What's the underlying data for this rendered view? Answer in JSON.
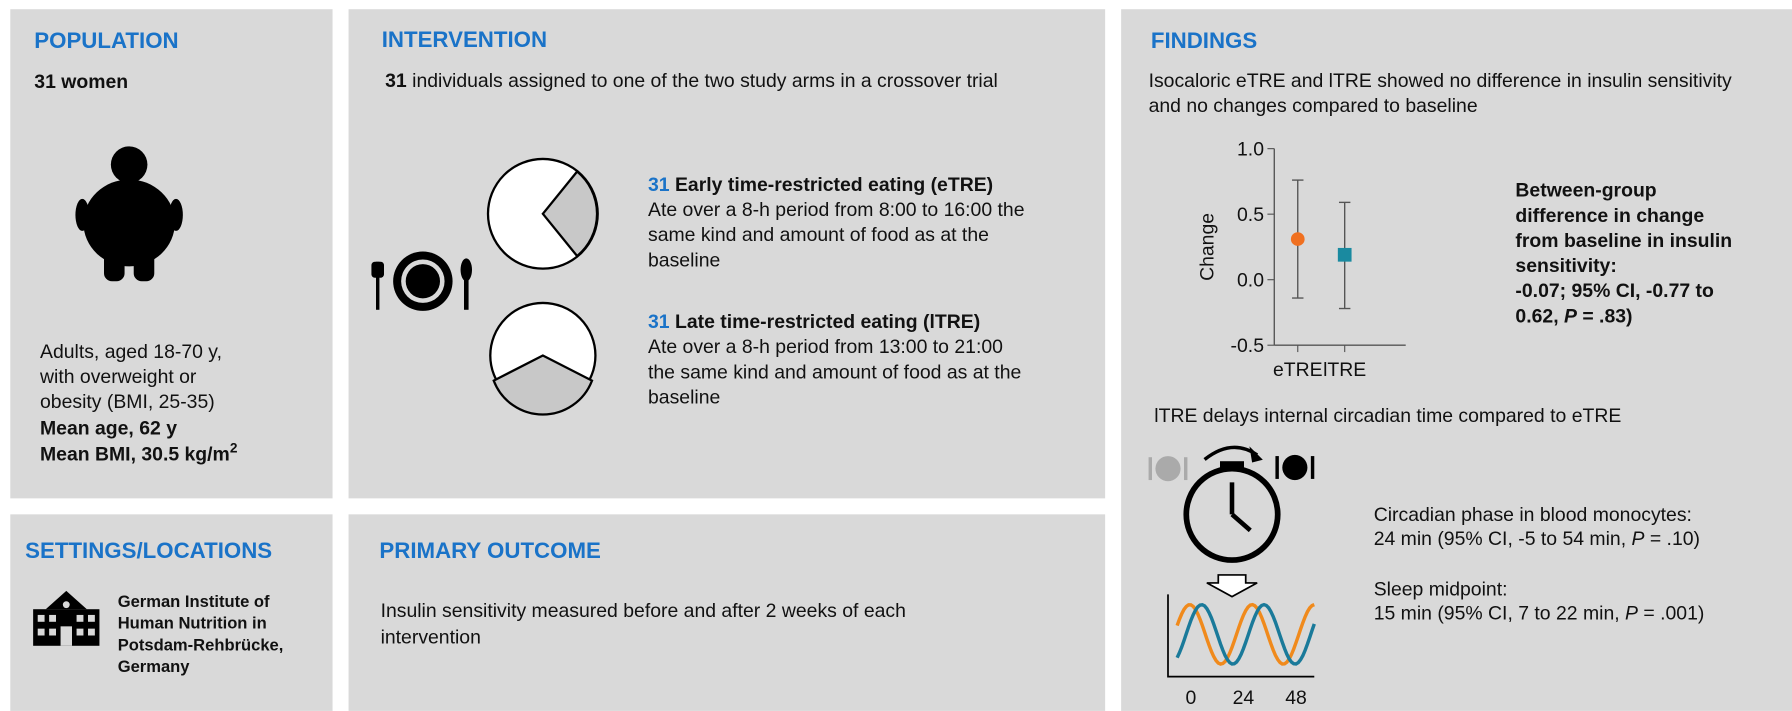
{
  "population": {
    "title": "POPULATION",
    "heading": "31 women",
    "lines": [
      "Adults, aged 18-70 y,",
      "with overweight or",
      "obesity (BMI, 25-35)"
    ],
    "mean_age": "Mean age, 62 y",
    "mean_bmi": "Mean BMI, 30.5 kg/m",
    "bmi_sup": "2"
  },
  "intervention": {
    "title": "INTERVENTION",
    "count": "31",
    "intro": " individuals assigned to one of the two study arms in a crossover trial",
    "arms": [
      {
        "count": "31",
        "name": " Early time-restricted eating (eTRE)",
        "lines": [
          "Ate over a 8-h period from 8:00 to 16:00 the",
          "same kind and amount of food as at the",
          "baseline"
        ]
      },
      {
        "count": "31",
        "name": " Late time-restricted eating (lTRE)",
        "lines": [
          "Ate over a 8-h period from 13:00 to 21:00",
          "the same kind and amount of food as at the",
          "baseline"
        ]
      }
    ]
  },
  "settings": {
    "title": "SETTINGS/LOCATIONS",
    "lines": [
      "German Institute of",
      "Human Nutrition in",
      "Potsdam-Rehbrücke,",
      "Germany"
    ]
  },
  "primary_outcome": {
    "title": "PRIMARY OUTCOME",
    "lines": [
      "Insulin sensitivity measured before and after 2 weeks of each",
      "intervention"
    ]
  },
  "findings": {
    "title": "FINDINGS",
    "lines": [
      "Isocaloric eTRE and lTRE showed no difference in insulin sensitivity",
      "and no changes compared to baseline"
    ],
    "chart": {
      "type": "errorbar",
      "ylabel": "Change",
      "categories": [
        "eTRE",
        "lTRE"
      ],
      "values": [
        0.31,
        0.19
      ],
      "upper": [
        0.76,
        0.59
      ],
      "lower": [
        -0.14,
        -0.22
      ],
      "colors": [
        "#f07020",
        "#1a8aa0"
      ],
      "markers": [
        "circle",
        "square"
      ],
      "ylim": [
        -0.5,
        1.0
      ],
      "yticks": [
        {
          "value": -0.5,
          "label": "-0.5"
        },
        {
          "value": 0.0,
          "label": "0.0"
        },
        {
          "value": 0.5,
          "label": "0.5"
        },
        {
          "value": 1.0,
          "label": "1.0"
        }
      ]
    },
    "between_group": [
      [
        {
          "text": "Between-group"
        }
      ],
      [
        {
          "text": "difference in change"
        }
      ],
      [
        {
          "text": "from baseline in insulin"
        }
      ],
      [
        {
          "text": "sensitivity:"
        }
      ],
      [
        {
          "text": "-0.07; 95% CI, -0.77 to"
        }
      ],
      [
        {
          "text": "0.62, "
        },
        {
          "text": "P",
          "italic": true
        },
        {
          "text": " = .83)"
        }
      ]
    ],
    "circadian_title": "lTRE delays internal circadian time compared to eTRE",
    "wave_axis_labels": [
      "0",
      "24",
      "48"
    ],
    "results": [
      [
        {
          "text": "Circadian phase in blood monocytes:"
        }
      ],
      [
        {
          "text": "24 min (95% CI, -5 to 54 min, "
        },
        {
          "text": "P",
          "italic": true
        },
        {
          "text": " = .10)"
        }
      ],
      [
        {
          "text": "Sleep midpoint:"
        }
      ],
      [
        {
          "text": "15 min (95% CI, 7 to 22 min, "
        },
        {
          "text": "P",
          "italic": true
        },
        {
          "text": " = .001)"
        }
      ]
    ]
  }
}
